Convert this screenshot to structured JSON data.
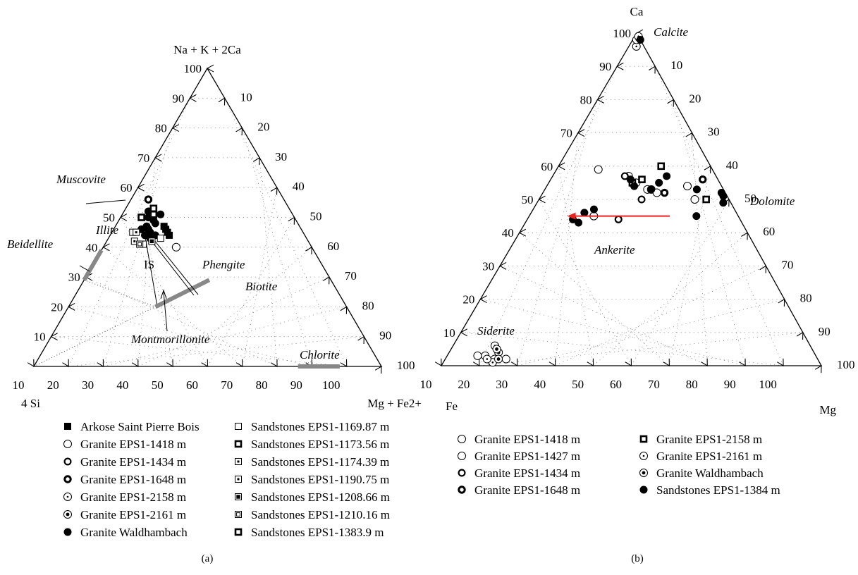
{
  "figure": {
    "panels": [
      {
        "id": "a",
        "caption": "(a)",
        "apex_labels": {
          "top": "Na + K + 2Ca",
          "left": "4 Si",
          "right": "Mg + Fe2+"
        },
        "left_side_ticks": [
          "10",
          "20",
          "30",
          "40",
          "50",
          "60",
          "70",
          "80",
          "90",
          "100"
        ],
        "right_side_ticks": [
          "10",
          "20",
          "30",
          "40",
          "50",
          "60",
          "70",
          "80",
          "90",
          "100"
        ],
        "bottom_ticks": [
          "100",
          "90",
          "80",
          "70",
          "60",
          "50",
          "40",
          "30",
          "20",
          "10"
        ],
        "annotations": [
          "Muscovite",
          "Illite",
          "Beidellite",
          "IS",
          "Phengite",
          "Biotite",
          "Montmorillonite",
          "Chlorite"
        ],
        "legend": [
          {
            "marker": "filled-square",
            "label": "Arkose Saint Pierre Bois"
          },
          {
            "marker": "open-circle",
            "label": "Granite EPS1-1418 m"
          },
          {
            "marker": "thick-ring",
            "label": "Granite EPS1-1434 m"
          },
          {
            "marker": "thicker-ring",
            "label": "Granite EPS1-1648 m"
          },
          {
            "marker": "dot-circle-small",
            "label": "Granite EPS1-2158 m"
          },
          {
            "marker": "dot-circle",
            "label": "Granite EPS1-2161 m"
          },
          {
            "marker": "filled-circle",
            "label": "Granite Waldhambach"
          },
          {
            "marker": "open-square",
            "label": "Sandstones EPS1-1169.87 m"
          },
          {
            "marker": "thick-square",
            "label": "Sandstones EPS1-1173.56 m"
          },
          {
            "marker": "dot-square",
            "label": "Sandstones EPS1-1174.39 m"
          },
          {
            "marker": "dot-square-2",
            "label": "Sandstones EPS1-1190.75 m"
          },
          {
            "marker": "filled-inner-square",
            "label": "Sandstones EPS1-1208.66 m"
          },
          {
            "marker": "nested-square",
            "label": "Sandstones EPS1-1210.16 m"
          },
          {
            "marker": "thick-square-2",
            "label": "Sandstones EPS1-1383.9 m"
          }
        ]
      },
      {
        "id": "b",
        "caption": "(b)",
        "apex_labels": {
          "top": "Ca",
          "left": "Fe",
          "right": "Mg"
        },
        "left_side_ticks": [
          "10",
          "20",
          "30",
          "40",
          "50",
          "60",
          "70",
          "80",
          "90",
          "100"
        ],
        "right_side_ticks": [
          "10",
          "20",
          "30",
          "40",
          "50",
          "60",
          "70",
          "80",
          "90",
          "100"
        ],
        "bottom_ticks": [
          "100",
          "90",
          "80",
          "70",
          "60",
          "50",
          "40",
          "30",
          "20",
          "10"
        ],
        "annotations": [
          "Calcite",
          "Dolomite",
          "Ankerite",
          "Siderite"
        ],
        "legend": [
          {
            "marker": "open-circle",
            "label": "Granite EPS1-1418 m"
          },
          {
            "marker": "open-circle-2",
            "label": "Granite EPS1-1427 m"
          },
          {
            "marker": "thick-ring",
            "label": "Granite EPS1-1434 m"
          },
          {
            "marker": "thicker-ring",
            "label": "Granite EPS1-1648 m"
          },
          {
            "marker": "thick-square",
            "label": "Granite EPS1-2158 m"
          },
          {
            "marker": "dot-circle-small",
            "label": "Granite EPS1-2161 m"
          },
          {
            "marker": "dot-circle",
            "label": "Granite Waldhambach"
          },
          {
            "marker": "filled-circle",
            "label": "Sandstones EPS1-1384 m"
          }
        ]
      }
    ]
  },
  "chart_data": [
    {
      "type": "scatter",
      "subtype": "ternary",
      "panel": "a",
      "axes": {
        "top": "Na + K + 2Ca",
        "left": "4 Si",
        "right": "Mg + Fe2+"
      },
      "range": [
        0,
        100
      ],
      "grid": true,
      "note": "points given as [top %, right %]; left = 100 - top - right",
      "series": [
        {
          "name": "Arkose Saint Pierre Bois",
          "marker": "filled-square",
          "points": [
            [
              46,
              15
            ],
            [
              45,
              16
            ],
            [
              47,
              14
            ],
            [
              44,
              17
            ]
          ]
        },
        {
          "name": "Granite EPS1-1418 m",
          "marker": "open-circle",
          "points": [
            [
              40,
              21
            ]
          ]
        },
        {
          "name": "Granite EPS1-1434 m",
          "marker": "thick-ring",
          "points": [
            [
              46,
              9
            ]
          ]
        },
        {
          "name": "Granite EPS1-1648 m",
          "marker": "thicker-ring",
          "points": [
            [
              56,
              5
            ]
          ]
        },
        {
          "name": "Granite EPS1-2158 m",
          "marker": "dot-circle-small",
          "points": [
            [
              45,
              10
            ]
          ]
        },
        {
          "name": "Granite EPS1-2161 m",
          "marker": "dot-circle",
          "points": [
            [
              44,
              11
            ]
          ]
        },
        {
          "name": "Granite Waldhambach",
          "marker": "filled-circle",
          "points": [
            [
              52,
              7
            ],
            [
              50,
              8
            ],
            [
              49,
              10
            ],
            [
              47,
              9
            ],
            [
              46,
              10
            ],
            [
              45,
              11
            ],
            [
              44,
              10
            ],
            [
              43,
              12
            ],
            [
              48,
              11
            ],
            [
              51,
              11
            ],
            [
              46,
              8
            ],
            [
              44,
              13
            ]
          ]
        },
        {
          "name": "Sandstones EPS1-1169.87 m",
          "marker": "open-square",
          "points": [
            [
              45,
              6
            ],
            [
              41,
              11
            ],
            [
              43,
              15
            ]
          ]
        },
        {
          "name": "Sandstones EPS1-1173.56 m",
          "marker": "thick-square",
          "points": [
            [
              53,
              8
            ],
            [
              51,
              9
            ]
          ]
        },
        {
          "name": "Sandstones EPS1-1174.39 m",
          "marker": "dot-square",
          "points": [
            [
              42,
              8
            ]
          ]
        },
        {
          "name": "Sandstones EPS1-1190.75 m",
          "marker": "dot-square-2",
          "points": [
            [
              45,
              7
            ]
          ]
        },
        {
          "name": "Sandstones EPS1-1208.66 m",
          "marker": "filled-inner-square",
          "points": [
            [
              42,
              13
            ]
          ]
        },
        {
          "name": "Sandstones EPS1-1210.16 m",
          "marker": "nested-square",
          "points": [
            [
              41,
              10
            ]
          ]
        },
        {
          "name": "Sandstones EPS1-1383.9 m",
          "marker": "thick-square-2",
          "points": [
            [
              50,
              6
            ]
          ]
        }
      ],
      "annotation_lines": [
        {
          "name": "Beidellite",
          "from": [
            39,
            0
          ],
          "to": [
            29,
            0
          ]
        },
        {
          "name": "Montmorillonite",
          "from": [
            20,
            25
          ],
          "to": [
            29,
            36
          ]
        },
        {
          "name": "Chlorite",
          "from": [
            0,
            76
          ],
          "to": [
            0,
            88
          ]
        }
      ]
    },
    {
      "type": "scatter",
      "subtype": "ternary",
      "panel": "b",
      "axes": {
        "top": "Ca",
        "left": "Fe",
        "right": "Mg"
      },
      "range": [
        0,
        100
      ],
      "grid": true,
      "note": "points given as [Ca %, Mg %]; Fe = 100 - Ca - Mg",
      "series": [
        {
          "name": "Granite EPS1-1418 m",
          "marker": "open-circle",
          "points": [
            [
              59,
              11
            ],
            [
              57,
              20
            ],
            [
              53,
              27
            ],
            [
              45,
              17
            ],
            [
              54,
              37
            ],
            [
              3,
              10
            ],
            [
              2,
              13
            ]
          ]
        },
        {
          "name": "Granite EPS1-1427 m",
          "marker": "open-circle-2",
          "points": [
            [
              55,
              23
            ],
            [
              53,
              28
            ],
            [
              52,
              30
            ],
            [
              50,
              41
            ],
            [
              3,
              8
            ],
            [
              2,
              16
            ]
          ]
        },
        {
          "name": "Granite EPS1-1434 m",
          "marker": "thick-ring",
          "points": [
            [
              57,
              19
            ],
            [
              50,
              27
            ],
            [
              44,
              24
            ]
          ]
        },
        {
          "name": "Granite EPS1-1648 m",
          "marker": "thicker-ring",
          "points": [
            [
              56,
              40
            ],
            [
              52,
              32
            ]
          ]
        },
        {
          "name": "Granite EPS1-2158 m",
          "marker": "thick-square",
          "points": [
            [
              60,
              27
            ],
            [
              56,
              24
            ],
            [
              55,
              22
            ],
            [
              50,
              44
            ]
          ]
        },
        {
          "name": "Granite EPS1-2161 m",
          "marker": "dot-circle-small",
          "points": [
            [
              96,
              2
            ],
            [
              98,
              1
            ],
            [
              99,
              1
            ],
            [
              6,
              11
            ],
            [
              1,
              13
            ],
            [
              2,
              11
            ]
          ]
        },
        {
          "name": "Granite Waldhambach",
          "marker": "dot-circle",
          "points": [
            [
              4,
              13
            ],
            [
              5,
              12
            ],
            [
              2,
              14
            ]
          ]
        },
        {
          "name": "Sandstones EPS1-1384 m",
          "marker": "filled-circle",
          "points": [
            [
              98,
              2
            ],
            [
              56,
              21
            ],
            [
              54,
              23
            ],
            [
              53,
              28
            ],
            [
              57,
              30
            ],
            [
              55,
              29
            ],
            [
              53,
              40
            ],
            [
              45,
              44
            ],
            [
              52,
              47
            ],
            [
              51,
              48
            ],
            [
              49,
              49
            ],
            [
              43,
              14
            ],
            [
              44,
              12
            ],
            [
              46,
              14
            ],
            [
              47,
              16
            ]
          ]
        }
      ],
      "arrow": {
        "from": [
          45,
          37
        ],
        "to": [
          45,
          10
        ],
        "color": "#e82121"
      }
    }
  ]
}
